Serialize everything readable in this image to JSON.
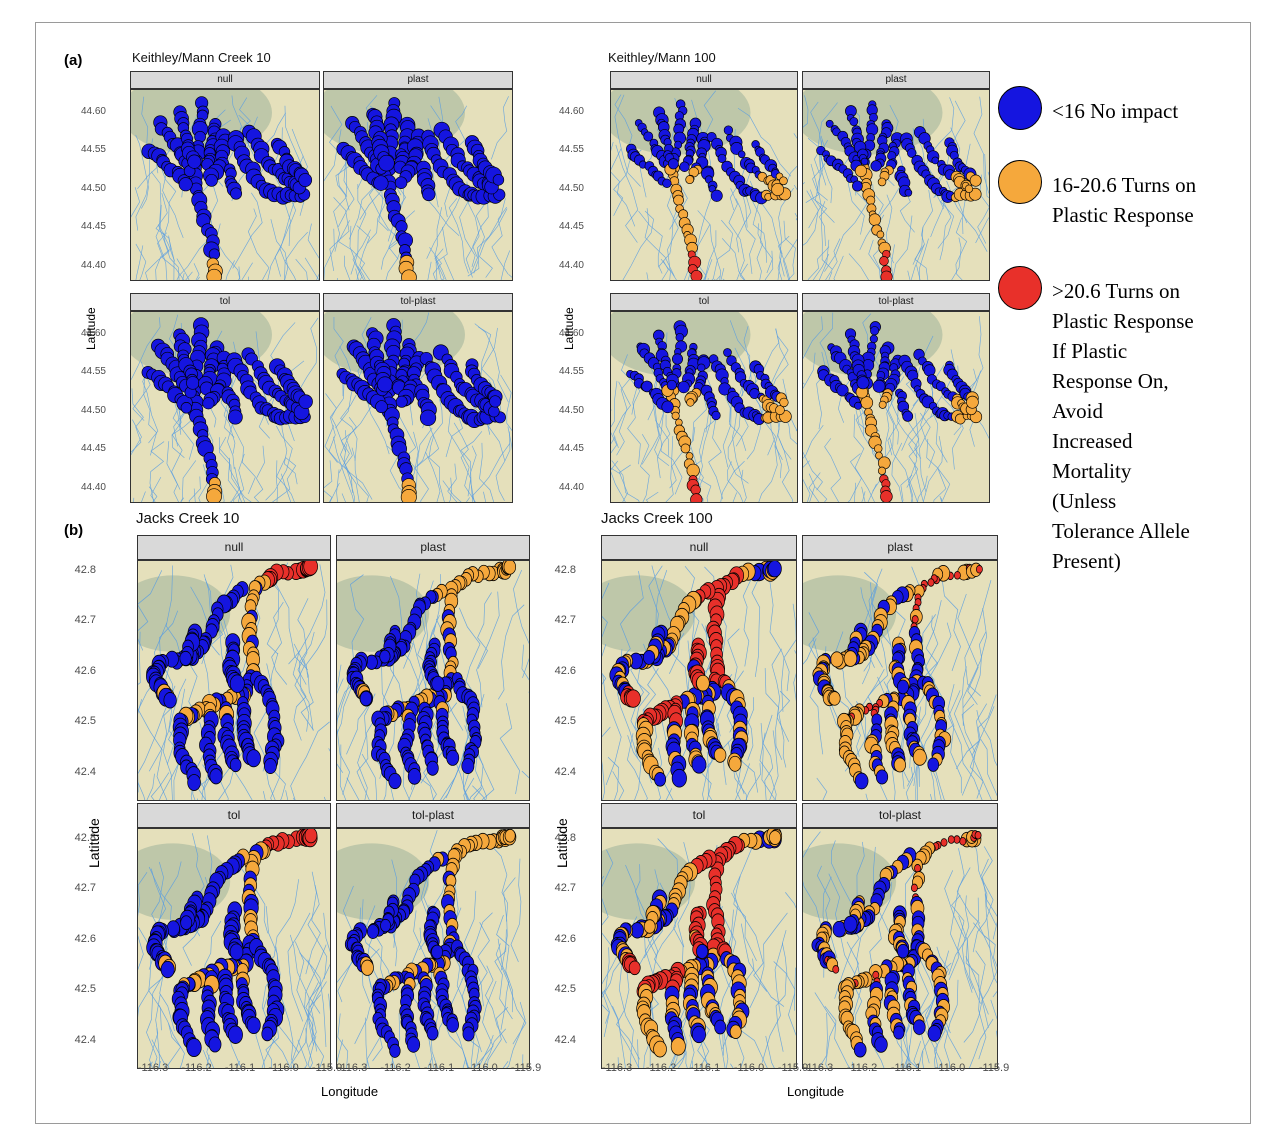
{
  "figure": {
    "panel_a_label": "(a)",
    "panel_b_label": "(b)",
    "y_axis_title": "Latitude",
    "x_axis_title": "Longitude",
    "scenarios": [
      "null",
      "plast",
      "tol",
      "tol-plast"
    ]
  },
  "groups": [
    {
      "title": "Keithley/Mann Creek 10",
      "panel": "a",
      "yticks": [
        "44.60",
        "44.55",
        "44.50",
        "44.45",
        "44.40"
      ],
      "xticks": []
    },
    {
      "title": "Keithley/Mann 100",
      "panel": "a",
      "yticks": [
        "44.60",
        "44.55",
        "44.50",
        "44.45",
        "44.40"
      ],
      "xticks": []
    },
    {
      "title": "Jacks  Creek 10",
      "panel": "b",
      "yticks": [
        "42.8",
        "42.7",
        "42.6",
        "42.5",
        "42.4"
      ],
      "xticks": [
        "-116.3",
        "-116.2",
        "-116.1",
        "-116.0",
        "-115.9"
      ]
    },
    {
      "title": "Jacks  Creek 100",
      "panel": "b",
      "yticks": [
        "42.8",
        "42.7",
        "42.6",
        "42.5",
        "42.4"
      ],
      "xticks": [
        "-116.3",
        "-116.2",
        "-116.1",
        "-116.0",
        "-115.9"
      ]
    }
  ],
  "legend": {
    "colors": {
      "no_impact": "#1515e0",
      "plastic": "#f5a83c",
      "mortality": "#e8302a"
    },
    "items": [
      {
        "key": "no_impact",
        "lines": [
          "<16 No impact"
        ]
      },
      {
        "key": "plastic",
        "lines": [
          "16-20.6 Turns on",
          "Plastic Response"
        ]
      },
      {
        "key": "mortality",
        "lines": [
          ">20.6 Turns on",
          "Plastic Response",
          "If Plastic",
          "Response On,",
          "Avoid",
          "Increased",
          "Mortality",
          "(Unless",
          "Tolerance Allele",
          "Present)"
        ]
      }
    ]
  },
  "map_data": {
    "keithley": {
      "lat_range": [
        44.39,
        44.63
      ],
      "lon_range": [
        -116.36,
        -115.88
      ],
      "outcomes": {
        "Keithley/Mann Creek 10|null": "mostly_no_impact_tip_plastic",
        "Keithley/Mann Creek 10|plast": "mostly_no_impact_tip_plastic",
        "Keithley/Mann Creek 10|tol": "mostly_no_impact_tip_plastic",
        "Keithley/Mann Creek 10|tol-plast": "mostly_no_impact_tip_plastic",
        "Keithley/Mann 100|null": "mainstem_plastic_tip_mortality",
        "Keithley/Mann 100|plast": "mainstem_plastic_tip_mortality",
        "Keithley/Mann 100|tol": "mainstem_plastic_tip_mortality",
        "Keithley/Mann 100|tol-plast": "mainstem_plastic_tip_mortality"
      }
    },
    "jacks": {
      "lat_range": [
        42.36,
        42.83
      ],
      "lon_range": [
        -116.35,
        -115.85
      ],
      "outcomes": {
        "Jacks  Creek 10|null": "mixed_low",
        "Jacks  Creek 10|plast": "mixed_low",
        "Jacks  Creek 10|tol": "mixed_low",
        "Jacks  Creek 10|tol-plast": "mixed_low",
        "Jacks  Creek 100|null": "mixed_high",
        "Jacks  Creek 100|plast": "mixed_high",
        "Jacks  Creek 100|tol": "mixed_high",
        "Jacks  Creek 100|tol-plast": "mixed_high"
      }
    }
  }
}
